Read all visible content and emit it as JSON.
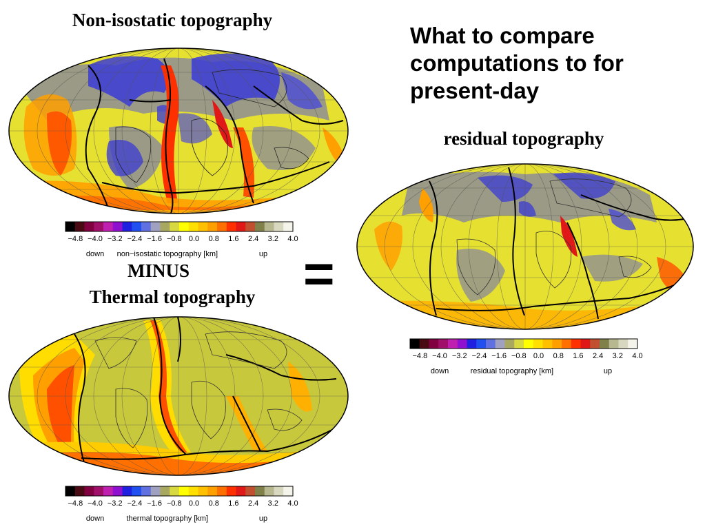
{
  "heading": "What to compare computations to for present-day",
  "operator_minus": "MINUS",
  "operator_equals": "=",
  "panels": [
    {
      "title": "Non-isostatic topography",
      "colorbar_label": "non−isostatic topography [km]"
    },
    {
      "title": "Thermal topography",
      "colorbar_label": "thermal topography [km]"
    },
    {
      "title": "residual topography",
      "colorbar_label": "residual topography [km]"
    }
  ],
  "colorbar": {
    "ticks": [
      "−4.8",
      "−4.0",
      "−3.2",
      "−2.4",
      "−1.6",
      "−0.8",
      "0.0",
      "0.8",
      "1.6",
      "2.4",
      "3.2",
      "4.0"
    ],
    "tick_values": [
      -4.8,
      -4.0,
      -3.2,
      -2.4,
      -1.6,
      -0.8,
      0.0,
      0.8,
      1.6,
      2.4,
      3.2,
      4.0
    ],
    "range": [
      -5.2,
      4.0
    ],
    "down_label": "down",
    "up_label": "up",
    "colors": [
      "#000000",
      "#4a0a14",
      "#800040",
      "#a0106a",
      "#c020b0",
      "#9010d0",
      "#2020e0",
      "#2050f0",
      "#6070e0",
      "#a0a0c0",
      "#a8a860",
      "#d8d840",
      "#ffff00",
      "#ffe000",
      "#ffc000",
      "#ffa000",
      "#ff7000",
      "#ff3000",
      "#e01818",
      "#c05030",
      "#80804a",
      "#b8b890",
      "#d8d8c0",
      "#f4f4ea"
    ]
  }
}
